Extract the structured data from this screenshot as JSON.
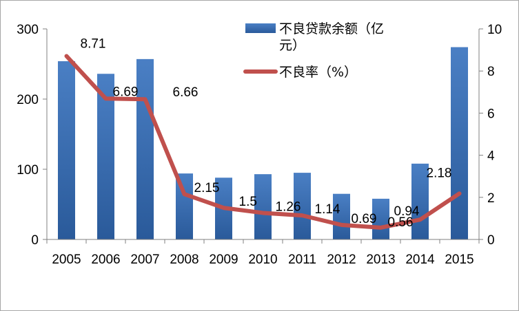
{
  "chart_data": {
    "type": "bar+line",
    "categories": [
      "2005",
      "2006",
      "2007",
      "2008",
      "2009",
      "2010",
      "2011",
      "2012",
      "2013",
      "2014",
      "2015"
    ],
    "series": [
      {
        "name": "不良贷款余额（亿元）",
        "type": "bar",
        "axis": "left",
        "color": "#3a70b8",
        "values": [
          254,
          236,
          257,
          94,
          88,
          93,
          95,
          65,
          58,
          108,
          274
        ]
      },
      {
        "name": "不良率（%）",
        "type": "line",
        "axis": "right",
        "color": "#c0504d",
        "values": [
          8.71,
          6.69,
          6.66,
          2.15,
          1.5,
          1.26,
          1.14,
          0.69,
          0.56,
          0.94,
          2.18
        ],
        "labels": [
          "8.71",
          "6.69",
          "6.66",
          "2.15",
          "1.5",
          "1.26",
          "1.14",
          "0.69",
          "0.56",
          "0.94",
          "2.18"
        ]
      }
    ],
    "y_left": {
      "min": 0,
      "max": 300,
      "ticks": [
        "0",
        "100",
        "200",
        "300"
      ]
    },
    "y_right": {
      "min": 0,
      "max": 10,
      "ticks": [
        "0",
        "2",
        "4",
        "6",
        "8",
        "10"
      ]
    },
    "legend_position": "top-center",
    "grid": false
  }
}
